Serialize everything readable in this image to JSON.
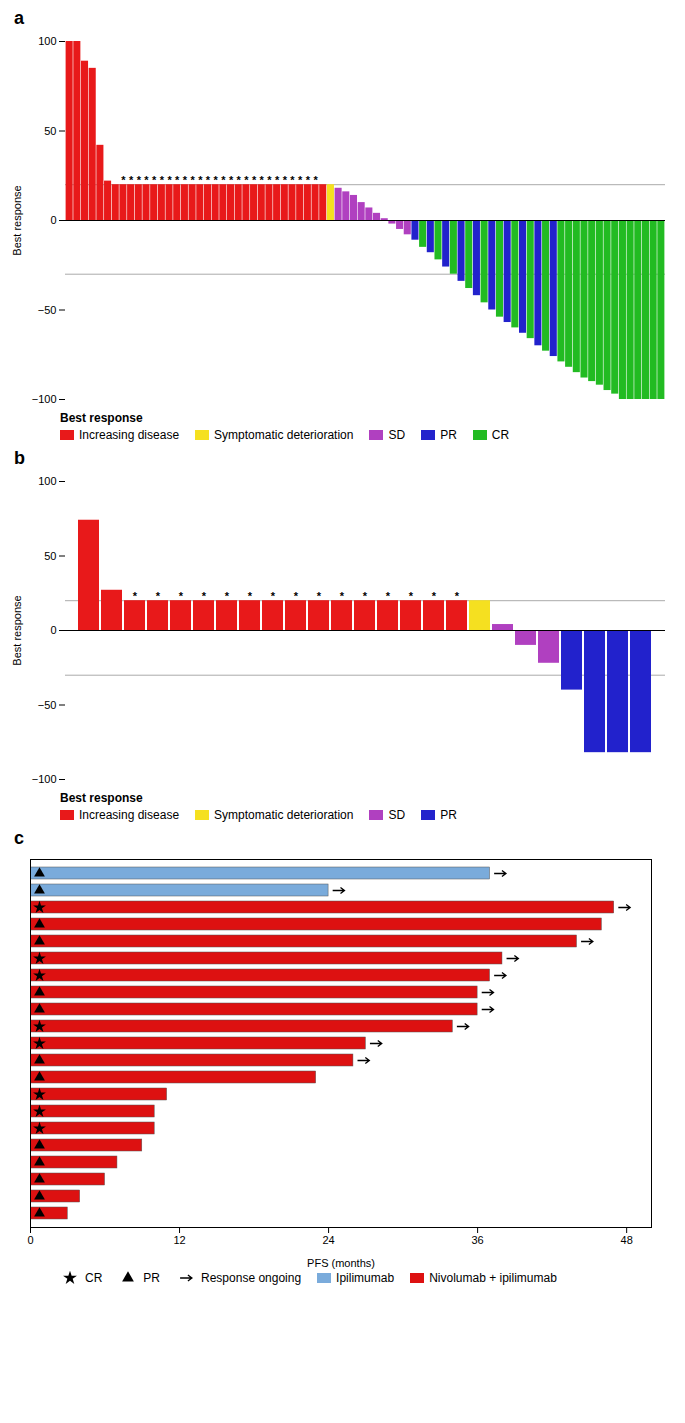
{
  "chart_data": [
    {
      "type": "bar",
      "title": "a",
      "categories": [
        null,
        null,
        null,
        null,
        null,
        null,
        null,
        null,
        null,
        null,
        null,
        null,
        null,
        null,
        null,
        null,
        null,
        null,
        null,
        null,
        null,
        null,
        null,
        null,
        null,
        null,
        null,
        null,
        null,
        null,
        null,
        null,
        null,
        null,
        null,
        null,
        null,
        null,
        null,
        null,
        null,
        null,
        null,
        null,
        null,
        null,
        null,
        null,
        null,
        null,
        null,
        null,
        null,
        null,
        null,
        null,
        null,
        null,
        null,
        null,
        null,
        null,
        null,
        null,
        null,
        null,
        null,
        null,
        null,
        null,
        null,
        null,
        null,
        null,
        null,
        null,
        null,
        null
      ],
      "values": [
        100,
        100,
        89,
        85,
        42,
        22,
        20,
        20,
        20,
        20,
        20,
        20,
        20,
        20,
        20,
        20,
        20,
        20,
        20,
        20,
        20,
        20,
        20,
        20,
        20,
        20,
        20,
        20,
        20,
        20,
        20,
        20,
        20,
        20,
        20,
        18,
        16,
        14,
        10,
        7,
        4,
        1,
        -2,
        -5,
        -8,
        -11,
        -15,
        -18,
        -22,
        -26,
        -30,
        -34,
        -38,
        -42,
        -46,
        -50,
        -54,
        -57,
        -60,
        -63,
        -66,
        -70,
        -73,
        -76,
        -79,
        -82,
        -85,
        -88,
        -90,
        -92,
        -95,
        -97,
        -100,
        -100,
        -100,
        -100,
        -100,
        -100
      ],
      "groups": [
        "Increasing disease",
        "Increasing disease",
        "Increasing disease",
        "Increasing disease",
        "Increasing disease",
        "Increasing disease",
        "Increasing disease",
        "Increasing disease",
        "Increasing disease",
        "Increasing disease",
        "Increasing disease",
        "Increasing disease",
        "Increasing disease",
        "Increasing disease",
        "Increasing disease",
        "Increasing disease",
        "Increasing disease",
        "Increasing disease",
        "Increasing disease",
        "Increasing disease",
        "Increasing disease",
        "Increasing disease",
        "Increasing disease",
        "Increasing disease",
        "Increasing disease",
        "Increasing disease",
        "Increasing disease",
        "Increasing disease",
        "Increasing disease",
        "Increasing disease",
        "Increasing disease",
        "Increasing disease",
        "Increasing disease",
        "Increasing disease",
        "Symptomatic deterioration",
        "SD",
        "SD",
        "SD",
        "SD",
        "SD",
        "SD",
        "SD",
        "SD",
        "SD",
        "SD",
        "PR",
        "CR",
        "PR",
        "CR",
        "PR",
        "CR",
        "PR",
        "CR",
        "PR",
        "CR",
        "PR",
        "CR",
        "PR",
        "CR",
        "PR",
        "CR",
        "PR",
        "CR",
        "PR",
        "CR",
        "CR",
        "CR",
        "CR",
        "CR",
        "CR",
        "CR",
        "CR",
        "CR",
        "CR",
        "CR",
        "CR",
        "CR",
        "CR"
      ],
      "legend_items": [
        {
          "name": "Increasing disease",
          "color": "#e8191a"
        },
        {
          "name": "Symptomatic deterioration",
          "color": "#f5e020"
        },
        {
          "name": "SD",
          "color": "#b040c0"
        },
        {
          "name": "PR",
          "color": "#2222cc"
        },
        {
          "name": "CR",
          "color": "#22bb22"
        }
      ],
      "legend_title": "Best response",
      "legend": "bottom",
      "annotation": "*",
      "annotated": [
        false,
        false,
        false,
        false,
        false,
        false,
        false,
        true,
        true,
        true,
        true,
        true,
        true,
        true,
        true,
        true,
        true,
        true,
        true,
        true,
        true,
        true,
        true,
        true,
        true,
        true,
        true,
        true,
        true,
        true,
        true,
        true,
        true,
        false,
        false,
        false,
        false,
        false,
        false,
        false,
        false,
        false,
        false,
        false,
        false,
        false,
        false,
        false,
        false,
        false,
        false,
        false,
        false,
        false,
        false,
        false,
        false,
        false,
        false,
        false,
        false,
        false,
        false,
        false,
        false,
        false,
        false,
        false,
        false,
        false,
        false,
        false,
        false,
        false,
        false,
        false,
        false,
        false
      ],
      "reference_lines": [
        20,
        -30
      ],
      "baseline": 0,
      "ylabel": "Best response",
      "ylim": [
        -100,
        100
      ],
      "yticks": [
        -100,
        -50,
        0,
        50,
        100
      ],
      "tick_labels": "y"
    },
    {
      "type": "bar",
      "title": "b",
      "categories": [
        null,
        null,
        null,
        null,
        null,
        null,
        null,
        null,
        null,
        null,
        null,
        null,
        null,
        null,
        null,
        null,
        null,
        null,
        null,
        null,
        null,
        null,
        null,
        null,
        null
      ],
      "values": [
        74,
        27,
        20,
        20,
        20,
        20,
        20,
        20,
        20,
        20,
        20,
        20,
        20,
        20,
        20,
        20,
        20,
        20,
        4,
        -10,
        -22,
        -40,
        -82,
        -82,
        -82
      ],
      "groups": [
        "Increasing disease",
        "Increasing disease",
        "Increasing disease",
        "Increasing disease",
        "Increasing disease",
        "Increasing disease",
        "Increasing disease",
        "Increasing disease",
        "Increasing disease",
        "Increasing disease",
        "Increasing disease",
        "Increasing disease",
        "Increasing disease",
        "Increasing disease",
        "Increasing disease",
        "Increasing disease",
        "Increasing disease",
        "Symptomatic deterioration",
        "SD",
        "SD",
        "SD",
        "PR",
        "PR",
        "PR",
        "PR"
      ],
      "legend_items": [
        {
          "name": "Increasing disease",
          "color": "#e8191a"
        },
        {
          "name": "Symptomatic deterioration",
          "color": "#f5e020"
        },
        {
          "name": "SD",
          "color": "#b040c0"
        },
        {
          "name": "PR",
          "color": "#2222cc"
        }
      ],
      "legend_title": "Best response",
      "legend": "bottom",
      "annotation": "*",
      "annotated": [
        false,
        false,
        true,
        true,
        true,
        true,
        true,
        true,
        true,
        true,
        true,
        true,
        true,
        true,
        true,
        true,
        true,
        false,
        false,
        false,
        false,
        false,
        false,
        false,
        false
      ],
      "reference_lines": [
        20,
        -30
      ],
      "baseline": 0,
      "ylabel": "Best response",
      "ylim": [
        -100,
        100
      ],
      "yticks": [
        -100,
        -50,
        0,
        50,
        100
      ],
      "tick_labels": "y"
    },
    {
      "type": "bar",
      "title": "c",
      "orientation": "horizontal",
      "categories": [
        null,
        null,
        null,
        null,
        null,
        null,
        null,
        null,
        null,
        null,
        null,
        null,
        null,
        null,
        null,
        null,
        null,
        null,
        null,
        null,
        null
      ],
      "values": [
        37,
        24,
        47,
        46,
        44,
        38,
        37,
        36,
        36,
        34,
        27,
        26,
        23,
        11,
        10,
        10,
        9,
        7,
        6,
        4,
        3
      ],
      "groups": [
        "Ipilimumab",
        "Ipilimumab",
        "Nivolumab + ipilimumab",
        "Nivolumab + ipilimumab",
        "Nivolumab + ipilimumab",
        "Nivolumab + ipilimumab",
        "Nivolumab + ipilimumab",
        "Nivolumab + ipilimumab",
        "Nivolumab + ipilimumab",
        "Nivolumab + ipilimumab",
        "Nivolumab + ipilimumab",
        "Nivolumab + ipilimumab",
        "Nivolumab + ipilimumab",
        "Nivolumab + ipilimumab",
        "Nivolumab + ipilimumab",
        "Nivolumab + ipilimumab",
        "Nivolumab + ipilimumab",
        "Nivolumab + ipilimumab",
        "Nivolumab + ipilimumab",
        "Nivolumab + ipilimumab",
        "Nivolumab + ipilimumab"
      ],
      "legend_items": [
        {
          "name": "Ipilimumab",
          "color": "#7aabdb"
        },
        {
          "name": "Nivolumab + ipilimumab",
          "color": "#dd1111"
        }
      ],
      "legend": "bottom",
      "response": [
        "PR",
        "PR",
        "CR",
        "PR",
        "PR",
        "CR",
        "CR",
        "PR",
        "PR",
        "CR",
        "CR",
        "PR",
        "PR",
        "CR",
        "CR",
        "CR",
        "PR",
        "PR",
        "PR",
        "PR",
        "PR"
      ],
      "markers": [
        {
          "name": "CR",
          "marker": "star"
        },
        {
          "name": "PR",
          "marker": "triangle"
        }
      ],
      "ongoing": [
        true,
        true,
        true,
        false,
        true,
        true,
        true,
        true,
        true,
        true,
        true,
        true,
        false,
        false,
        false,
        false,
        false,
        false,
        false,
        false,
        false
      ],
      "ongoing_label": "Response ongoing",
      "xlabel": "PFS (months)",
      "xlim": [
        0,
        50
      ],
      "xticks": [
        0,
        12,
        24,
        36,
        48
      ],
      "tick_labels": "x"
    }
  ]
}
